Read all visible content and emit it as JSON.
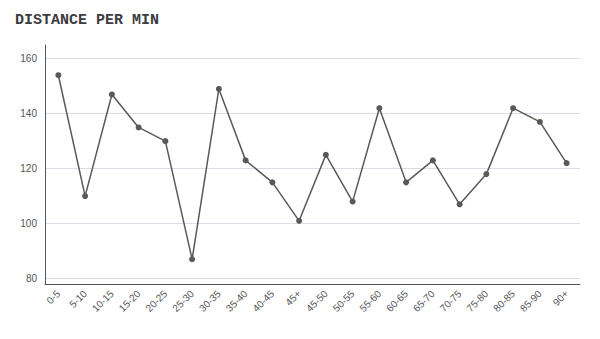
{
  "chart_data": {
    "type": "line",
    "title": "DISTANCE PER MIN",
    "categories": [
      "0-5",
      "5-10",
      "10-15",
      "15-20",
      "20-25",
      "25-30",
      "30-35",
      "35-40",
      "40-45",
      "45+",
      "45-50",
      "50-55",
      "55-60",
      "60-65",
      "65-70",
      "70-75",
      "75-80",
      "80-85",
      "85-90",
      "90+"
    ],
    "values": [
      154,
      110,
      147,
      135,
      130,
      87,
      149,
      123,
      115,
      101,
      125,
      108,
      142,
      115,
      123,
      107,
      118,
      142,
      137,
      122
    ],
    "color": "#595959",
    "marker": "circle",
    "ylim": [
      78,
      165
    ],
    "yticks": [
      80,
      100,
      120,
      140,
      160
    ],
    "grid": true
  }
}
